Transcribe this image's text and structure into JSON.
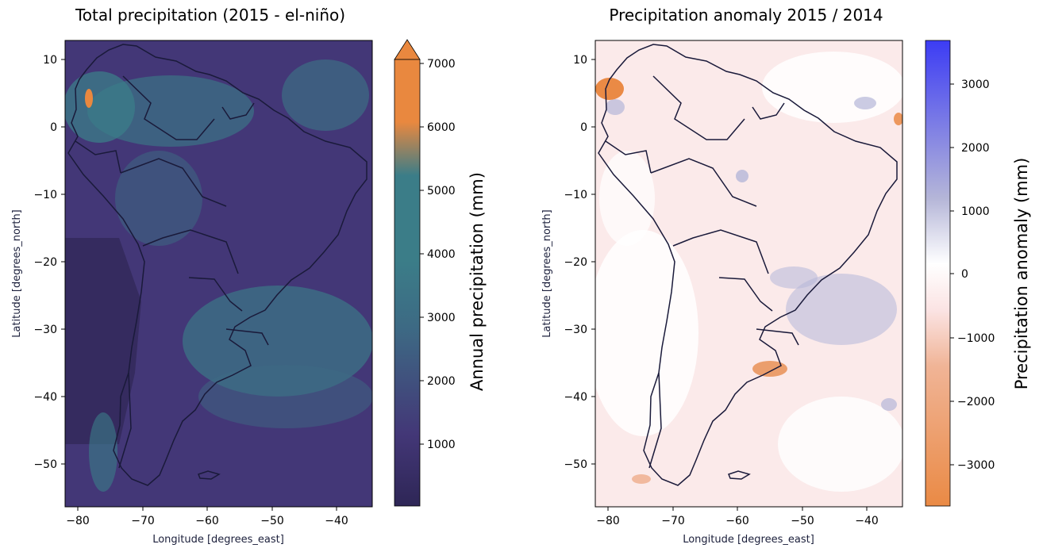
{
  "panels": [
    {
      "title": "Total precipitation (2015 - el-niño)",
      "xlabel": "Longitude [degrees_east]",
      "ylabel": "Latitude [degrees_north]",
      "x_ticks": [
        "−80",
        "−70",
        "−60",
        "−50",
        "−40"
      ],
      "y_ticks": [
        "10",
        "0",
        "−10",
        "−20",
        "−30",
        "−40",
        "−50"
      ],
      "colorbar": {
        "label": "Annual precipitation (mm)",
        "ticks": [
          "1000",
          "2000",
          "3000",
          "4000",
          "5000",
          "6000",
          "7000"
        ],
        "extend": "max",
        "colors": [
          "#2e2656",
          "#433777",
          "#3d6a84",
          "#3b7d88",
          "#3b7d88",
          "#e9883f"
        ]
      },
      "background_color": "#433777",
      "coast_color": "#1a1a3a"
    },
    {
      "title": "Precipitation anomaly 2015 / 2014",
      "xlabel": "Longitude [degrees_east]",
      "ylabel": "Latitude [degrees_north]",
      "x_ticks": [
        "−80",
        "−70",
        "−60",
        "−50",
        "−40"
      ],
      "y_ticks": [
        "10",
        "0",
        "−10",
        "−20",
        "−30",
        "−40",
        "−50"
      ],
      "colorbar": {
        "label": "Precipitation anomaly (mm)",
        "ticks": [
          "−3000",
          "−2000",
          "−1000",
          "0",
          "1000",
          "2000",
          "3000"
        ],
        "extend": "none",
        "colors": [
          "#ea8a45",
          "#f0b496",
          "#fbe3e3",
          "#ffffff",
          "#b5b6d8",
          "#3c3cf4"
        ]
      },
      "background_color": "#fbeaea",
      "coast_color": "#1a1a3a"
    }
  ],
  "chart_data": [
    {
      "type": "heatmap",
      "title": "Total precipitation (2015 - el-niño)",
      "xlabel": "Longitude [degrees_east]",
      "ylabel": "Latitude [degrees_north]",
      "xlim": [
        -82,
        -34.5
      ],
      "ylim": [
        -56.5,
        13
      ],
      "colorbar_label": "Annual precipitation (mm)",
      "colorbar_range": [
        0,
        7000
      ],
      "colorbar_extend": "max",
      "grid": false
    },
    {
      "type": "heatmap",
      "title": "Precipitation anomaly 2015 / 2014",
      "xlabel": "Longitude [degrees_east]",
      "ylabel": "Latitude [degrees_north]",
      "xlim": [
        -82,
        -34.5
      ],
      "ylim": [
        -56.5,
        13
      ],
      "colorbar_label": "Precipitation anomaly (mm)",
      "colorbar_range": [
        -3700,
        3700
      ],
      "grid": false
    }
  ]
}
